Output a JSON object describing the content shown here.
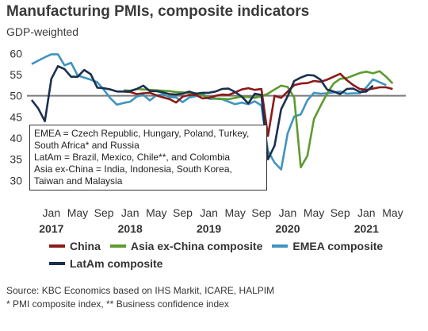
{
  "header": {
    "title": "Manufacturing PMIs, composite indicators",
    "subtitle": "GDP-weighted"
  },
  "note": {
    "lines": [
      "EMEA = Czech Republic, Hungary, Poland, Turkey,",
      "South Africa* and Russia",
      "LatAm = Brazil, Mexico, Chile**, and Colombia",
      "Asia ex-China = India, Indonesia, South Korea,",
      "Taiwan and Malaysia"
    ]
  },
  "source": {
    "line1": "Source: KBC Economics based on IHS Markit, ICARE, HALPIM",
    "line2": "* PMI composite index, ** Business confidence index"
  },
  "chart_data": {
    "type": "line",
    "title": "Manufacturing PMIs, composite indicators",
    "subtitle": "GDP-weighted",
    "x_start": "2016-10",
    "x_range": [
      "2016-10",
      "2021-07"
    ],
    "x_ticks": [
      {
        "month": "2017-01",
        "label": "Jan",
        "year": "2017"
      },
      {
        "month": "2017-05",
        "label": "May",
        "year": ""
      },
      {
        "month": "2017-09",
        "label": "Sep",
        "year": ""
      },
      {
        "month": "2018-01",
        "label": "Jan",
        "year": "2018"
      },
      {
        "month": "2018-05",
        "label": "May",
        "year": ""
      },
      {
        "month": "2018-09",
        "label": "Sep",
        "year": ""
      },
      {
        "month": "2019-01",
        "label": "Jan",
        "year": "2019"
      },
      {
        "month": "2019-05",
        "label": "May",
        "year": ""
      },
      {
        "month": "2019-09",
        "label": "Sep",
        "year": ""
      },
      {
        "month": "2020-01",
        "label": "Jan",
        "year": "2020"
      },
      {
        "month": "2020-05",
        "label": "May",
        "year": ""
      },
      {
        "month": "2020-09",
        "label": "Sep",
        "year": ""
      },
      {
        "month": "2021-01",
        "label": "Jan",
        "year": "2021"
      },
      {
        "month": "2021-05",
        "label": "May",
        "year": ""
      }
    ],
    "ylim": [
      28,
      61
    ],
    "y_ticks": [
      30,
      35,
      40,
      45,
      50,
      55,
      60
    ],
    "reference_line": 50,
    "grid": false,
    "legend_position": "bottom",
    "series": [
      {
        "name": "China",
        "color": "#8b1a1a",
        "start": "2017-12",
        "values": [
          51.0,
          50.9,
          50.4,
          50.6,
          50.7,
          50.1,
          49.6,
          49.2,
          48.4,
          49.8,
          50.2,
          50.2,
          49.4,
          49.5,
          50.0,
          50.3,
          50.2,
          50.8,
          51.5,
          51.8,
          51.4,
          51.6,
          40.5,
          50.0,
          49.5,
          51.0,
          52.5,
          52.9,
          53.0,
          53.5,
          53.3,
          53.8,
          54.5,
          55.2,
          53.7,
          52.5,
          51.6,
          51.4,
          51.7,
          52.0,
          52.0,
          51.6
        ]
      },
      {
        "name": "Asia ex-China composite",
        "color": "#5e9b2f",
        "start": "2017-12",
        "values": [
          51.3,
          51.2,
          51.6,
          51.5,
          51.4,
          51.3,
          51.2,
          51.1,
          50.9,
          50.8,
          50.7,
          50.6,
          50.1,
          49.6,
          49.4,
          49.3,
          49.2,
          49.5,
          49.8,
          49.7,
          49.5,
          49.9,
          50.5,
          51.5,
          52.4,
          52.1,
          49.6,
          33.1,
          35.8,
          44.5,
          47.6,
          50.5,
          52.9,
          54.0,
          54.2,
          54.8,
          55.4,
          55.7,
          55.3,
          55.8,
          54.5,
          52.9
        ]
      },
      {
        "name": "EMEA composite",
        "color": "#3f94c0",
        "start": "2016-10",
        "values": [
          57.5,
          58.3,
          59.1,
          59.8,
          59.8,
          57.2,
          57.8,
          54.8,
          54.3,
          53.8,
          53.2,
          51.4,
          49.4,
          47.9,
          48.3,
          48.6,
          49.8,
          50.2,
          48.9,
          50.1,
          50.4,
          49.7,
          49.6,
          48.5,
          49.6,
          49.9,
          50.6,
          49.3,
          49.3,
          49.2,
          48.6,
          48.0,
          48.4,
          48.0,
          48.7,
          47.7,
          37.0,
          34.2,
          32.6,
          41.1,
          45.1,
          45.6,
          48.9,
          50.7,
          50.5,
          50.6,
          50.8,
          51.0,
          50.5,
          50.6,
          50.6,
          52.0,
          53.9,
          53.2,
          52.5
        ]
      },
      {
        "name": "LatAm composite",
        "color": "#1b2f4f",
        "start": "2016-10",
        "values": [
          49.0,
          47.0,
          44.0,
          54.0,
          57.0,
          56.3,
          54.5,
          54.5,
          56.1,
          55.1,
          51.9,
          51.8,
          51.5,
          51.0,
          51.0,
          51.1,
          51.6,
          52.4,
          51.1,
          51.1,
          50.8,
          50.4,
          50.3,
          50.5,
          51.0,
          50.5,
          50.7,
          50.7,
          51.0,
          51.6,
          51.7,
          50.9,
          49.8,
          48.2,
          50.5,
          50.2,
          35.0,
          38.2,
          46.8,
          49.9,
          53.5,
          54.3,
          54.9,
          54.8,
          53.8,
          51.5,
          51.0,
          50.4,
          51.6,
          51.7,
          50.9,
          51.0,
          52.4
        ]
      }
    ]
  }
}
